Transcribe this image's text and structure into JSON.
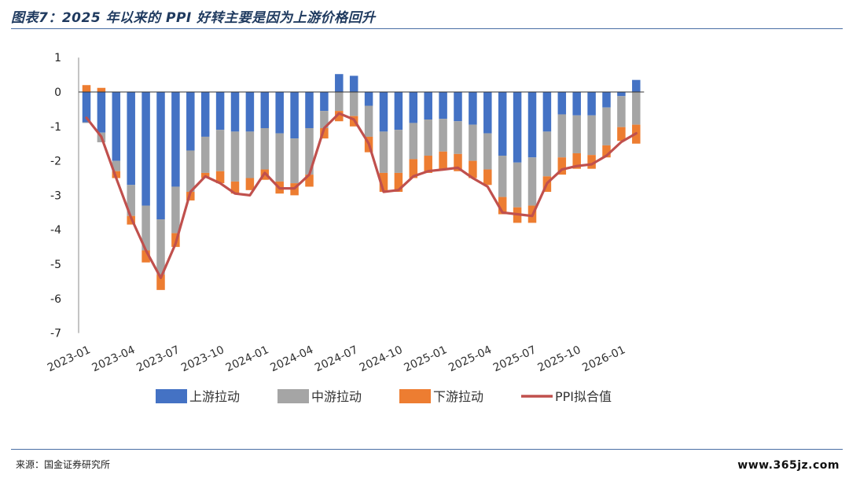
{
  "header": {
    "title": "图表7：2025 年以来的 PPI 好转主要是因为上游价格回升"
  },
  "footer": {
    "source": "来源：国金证券研究所",
    "watermark": "www.365jz.com"
  },
  "chart_data": {
    "type": "bar",
    "stacked": true,
    "categories": [
      "2023-01",
      "2023-02",
      "2023-03",
      "2023-04",
      "2023-05",
      "2023-06",
      "2023-07",
      "2023-08",
      "2023-09",
      "2023-10",
      "2023-11",
      "2023-12",
      "2024-01",
      "2024-02",
      "2024-03",
      "2024-04",
      "2024-05",
      "2024-06",
      "2024-07",
      "2024-08",
      "2024-09",
      "2024-10",
      "2024-11",
      "2024-12",
      "2025-01",
      "2025-02",
      "2025-03",
      "2025-04",
      "2025-05",
      "2025-06",
      "2025-07",
      "2025-08",
      "2025-09",
      "2025-10",
      "2025-11",
      "2025-12",
      "2026-01",
      "2026-02"
    ],
    "xtick_labels": [
      "2023-01",
      "2023-04",
      "2023-07",
      "2023-10",
      "2024-01",
      "2024-04",
      "2024-07",
      "2024-10",
      "2025-01",
      "2025-04",
      "2025-07",
      "2025-10",
      "2026-01"
    ],
    "yticks": [
      1,
      0,
      -1,
      -2,
      -3,
      -4,
      -5,
      -6,
      -7
    ],
    "ylim": [
      -7,
      1
    ],
    "legend_position": "bottom",
    "series": [
      {
        "name": "上游拉动",
        "kind": "bar",
        "color": "#4472C4",
        "values": [
          -0.88,
          -1.18,
          -2.0,
          -2.7,
          -3.3,
          -3.7,
          -2.75,
          -1.7,
          -1.3,
          -1.1,
          -1.15,
          -1.15,
          -1.05,
          -1.2,
          -1.35,
          -1.05,
          -0.55,
          0.52,
          0.47,
          -0.4,
          -1.15,
          -1.1,
          -0.9,
          -0.8,
          -0.78,
          -0.85,
          -0.95,
          -1.2,
          -1.85,
          -2.05,
          -1.9,
          -1.15,
          -0.65,
          -0.68,
          -0.68,
          -0.45,
          -0.12,
          0.35
        ]
      },
      {
        "name": "中游拉动",
        "kind": "bar",
        "color": "#A5A5A5",
        "values": [
          -0.02,
          -0.28,
          -0.3,
          -0.9,
          -1.3,
          -1.6,
          -1.35,
          -1.2,
          -1.05,
          -1.2,
          -1.45,
          -1.35,
          -1.2,
          -1.4,
          -1.3,
          -1.35,
          -0.5,
          -0.55,
          -0.7,
          -0.9,
          -1.2,
          -1.25,
          -1.05,
          -1.05,
          -0.95,
          -0.95,
          -1.05,
          -1.05,
          -1.2,
          -1.3,
          -1.4,
          -1.3,
          -1.25,
          -1.1,
          -1.15,
          -1.1,
          -0.9,
          -0.95
        ]
      },
      {
        "name": "下游拉动",
        "kind": "bar",
        "color": "#ED7D31",
        "values": [
          0.2,
          0.12,
          -0.2,
          -0.25,
          -0.35,
          -0.45,
          -0.4,
          -0.25,
          -0.15,
          -0.35,
          -0.35,
          -0.35,
          -0.3,
          -0.35,
          -0.35,
          -0.35,
          -0.3,
          -0.3,
          -0.3,
          -0.45,
          -0.55,
          -0.55,
          -0.55,
          -0.5,
          -0.5,
          -0.5,
          -0.5,
          -0.45,
          -0.5,
          -0.45,
          -0.5,
          -0.45,
          -0.5,
          -0.45,
          -0.4,
          -0.35,
          -0.4,
          -0.55
        ]
      },
      {
        "name": "PPI拟合值",
        "kind": "line",
        "color": "#C0504D",
        "values": [
          -0.75,
          -1.3,
          -2.5,
          -3.65,
          -4.6,
          -5.4,
          -4.4,
          -2.9,
          -2.45,
          -2.65,
          -2.95,
          -3.0,
          -2.35,
          -2.8,
          -2.8,
          -2.4,
          -1.05,
          -0.62,
          -0.8,
          -1.5,
          -2.9,
          -2.85,
          -2.45,
          -2.3,
          -2.25,
          -2.2,
          -2.5,
          -2.75,
          -3.5,
          -3.55,
          -3.6,
          -2.65,
          -2.25,
          -2.15,
          -2.1,
          -1.85,
          -1.45,
          -1.2
        ]
      }
    ]
  }
}
